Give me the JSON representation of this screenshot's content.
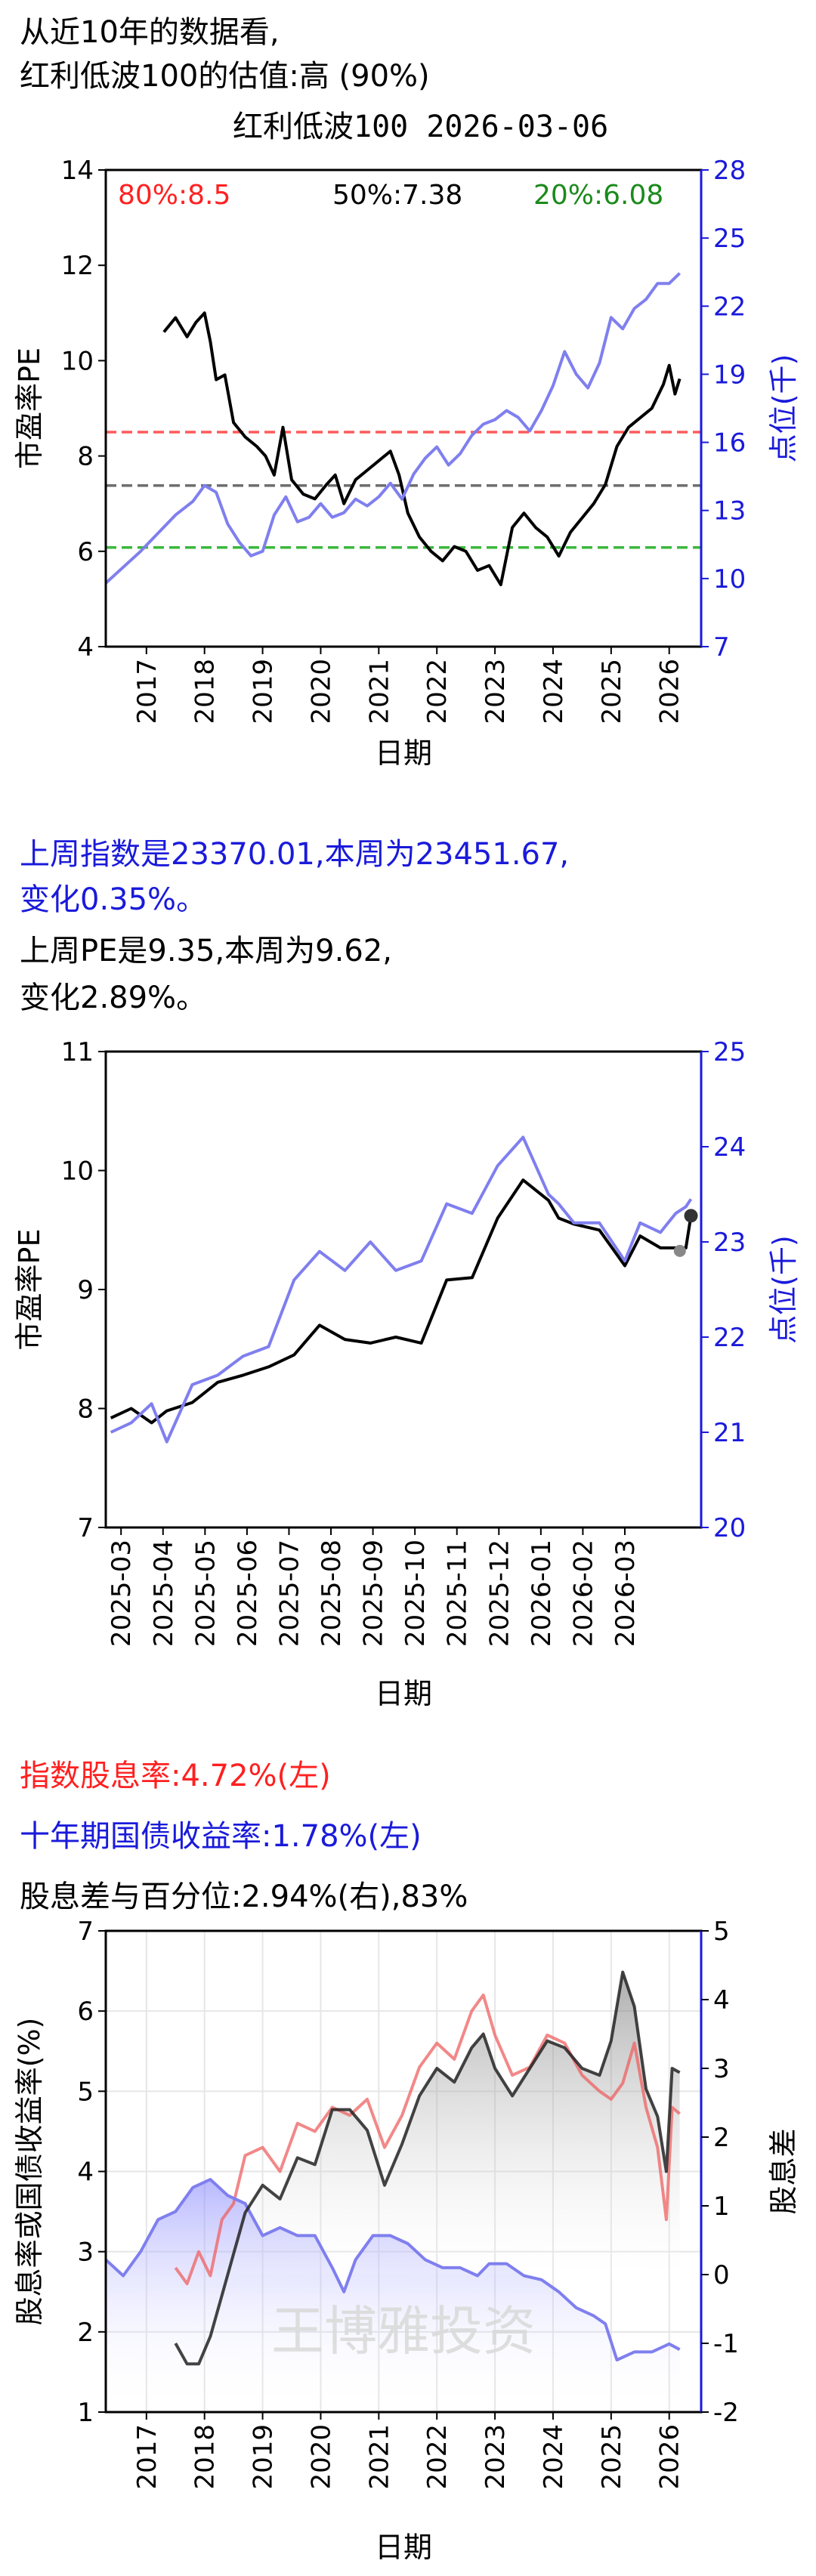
{
  "header": {
    "line1": "从近10年的数据看,",
    "line2": "红利低波100的估值:高 (90%)",
    "chart_title": "红利低波100 2026-03-06"
  },
  "middle": {
    "line1": "上周指数是23370.01,本周为23451.67,",
    "line2": "变化0.35%。",
    "line3": "上周PE是9.35,本周为9.62,",
    "line4": "变化2.89%。"
  },
  "lower": {
    "line1": "指数股息率:4.72%(左)",
    "line2": "十年期国债收益率:1.78%(左)",
    "line3": "股息差与百分位:2.94%(右),83%",
    "watermark": "王博雅投资"
  },
  "colors": {
    "pe": "#000000",
    "index": "#7f7fef",
    "blue_text": "#1a1adb",
    "red": "#ff2020",
    "green": "#1b8a1b",
    "gray": "#7f7f7f"
  },
  "chart_data": [
    {
      "type": "line",
      "title": "红利低波100 2026-03-06",
      "xlabel": "日期",
      "ylabel": "市盈率PE",
      "y2label": "点位(千)",
      "ylim": [
        4,
        14
      ],
      "y2lim": [
        7,
        28
      ],
      "yticks": [
        "4",
        "6",
        "8",
        "10",
        "12",
        "14"
      ],
      "y2ticks": [
        "7",
        "10",
        "13",
        "16",
        "19",
        "22",
        "25",
        "28"
      ],
      "xticks": [
        "2017",
        "2018",
        "2019",
        "2020",
        "2021",
        "2022",
        "2023",
        "2024",
        "2025",
        "2026"
      ],
      "xlim": [
        2016.3,
        2026.55
      ],
      "hlines": [
        {
          "label": "80%:8.5",
          "value": 8.5,
          "color": "#ff5a5a"
        },
        {
          "label": "50%:7.38",
          "value": 7.38,
          "color": "#6e6e6e"
        },
        {
          "label": "20%:6.08",
          "value": 6.08,
          "color": "#3cb83c"
        }
      ],
      "series": [
        {
          "role": "pe",
          "axis": "left",
          "x": [
            2017.3,
            2017.5,
            2017.7,
            2017.85,
            2018.0,
            2018.1,
            2018.2,
            2018.35,
            2018.5,
            2018.7,
            2018.9,
            2019.05,
            2019.2,
            2019.35,
            2019.5,
            2019.7,
            2019.9,
            2020.1,
            2020.25,
            2020.4,
            2020.6,
            2020.8,
            2021.0,
            2021.2,
            2021.35,
            2021.5,
            2021.7,
            2021.9,
            2022.1,
            2022.3,
            2022.5,
            2022.7,
            2022.9,
            2023.1,
            2023.3,
            2023.5,
            2023.7,
            2023.9,
            2024.1,
            2024.3,
            2024.5,
            2024.7,
            2024.9,
            2025.1,
            2025.3,
            2025.5,
            2025.7,
            2025.9,
            2026.0,
            2026.1,
            2026.18
          ],
          "values": [
            10.6,
            10.9,
            10.5,
            10.8,
            11.0,
            10.4,
            9.6,
            9.7,
            8.7,
            8.4,
            8.2,
            8.0,
            7.6,
            8.6,
            7.5,
            7.2,
            7.1,
            7.4,
            7.6,
            7.0,
            7.5,
            7.7,
            7.9,
            8.1,
            7.6,
            6.8,
            6.3,
            6.0,
            5.8,
            6.1,
            6.0,
            5.6,
            5.7,
            5.3,
            6.5,
            6.8,
            6.5,
            6.3,
            5.9,
            6.4,
            6.7,
            7.0,
            7.4,
            8.2,
            8.6,
            8.8,
            9.0,
            9.5,
            9.9,
            9.3,
            9.62
          ]
        },
        {
          "role": "index",
          "axis": "right",
          "x": [
            2016.3,
            2016.6,
            2016.9,
            2017.2,
            2017.5,
            2017.8,
            2018.0,
            2018.2,
            2018.4,
            2018.6,
            2018.8,
            2019.0,
            2019.2,
            2019.4,
            2019.6,
            2019.8,
            2020.0,
            2020.2,
            2020.4,
            2020.6,
            2020.8,
            2021.0,
            2021.2,
            2021.4,
            2021.6,
            2021.8,
            2022.0,
            2022.2,
            2022.4,
            2022.6,
            2022.8,
            2023.0,
            2023.2,
            2023.4,
            2023.6,
            2023.8,
            2024.0,
            2024.2,
            2024.4,
            2024.6,
            2024.8,
            2025.0,
            2025.2,
            2025.4,
            2025.6,
            2025.8,
            2026.0,
            2026.18
          ],
          "values": [
            9.8,
            10.5,
            11.2,
            12.0,
            12.8,
            13.4,
            14.1,
            13.8,
            12.4,
            11.6,
            11.0,
            11.2,
            12.8,
            13.6,
            12.5,
            12.7,
            13.3,
            12.7,
            12.9,
            13.5,
            13.2,
            13.6,
            14.2,
            13.5,
            14.6,
            15.3,
            15.8,
            15.0,
            15.5,
            16.3,
            16.8,
            17.0,
            17.4,
            17.1,
            16.5,
            17.4,
            18.5,
            20.0,
            19.0,
            18.4,
            19.5,
            21.5,
            21.0,
            21.9,
            22.3,
            23.0,
            23.0,
            23.45
          ]
        }
      ]
    },
    {
      "type": "line",
      "xlabel": "日期",
      "ylabel": "市盈率PE",
      "y2label": "点位(千)",
      "ylim": [
        7,
        11
      ],
      "y2lim": [
        20,
        25
      ],
      "yticks": [
        "7",
        "8",
        "9",
        "10",
        "11"
      ],
      "y2ticks": [
        "20",
        "21",
        "22",
        "23",
        "24",
        "25"
      ],
      "xticks": [
        "2025-03",
        "2025-04",
        "2025-05",
        "2025-06",
        "2025-07",
        "2025-08",
        "2025-09",
        "2025-10",
        "2025-11",
        "2025-12",
        "2026-01",
        "2026-02",
        "2026-03"
      ],
      "xlim": [
        2025.03,
        2026.2
      ],
      "series": [
        {
          "role": "pe",
          "axis": "left",
          "x": [
            2025.04,
            2025.08,
            2025.12,
            2025.15,
            2025.2,
            2025.25,
            2025.3,
            2025.35,
            2025.4,
            2025.45,
            2025.5,
            2025.55,
            2025.6,
            2025.65,
            2025.7,
            2025.75,
            2025.8,
            2025.85,
            2025.9,
            2025.92,
            2025.95,
            2026.0,
            2026.05,
            2026.08,
            2026.12,
            2026.15,
            2026.17,
            2026.18
          ],
          "values": [
            7.92,
            8.0,
            7.88,
            7.98,
            8.05,
            8.22,
            8.28,
            8.35,
            8.45,
            8.7,
            8.58,
            8.55,
            8.6,
            8.55,
            9.08,
            9.1,
            9.6,
            9.92,
            9.75,
            9.6,
            9.55,
            9.5,
            9.2,
            9.45,
            9.35,
            9.35,
            9.35,
            9.62
          ]
        },
        {
          "role": "index",
          "axis": "right",
          "x": [
            2025.04,
            2025.08,
            2025.12,
            2025.15,
            2025.2,
            2025.25,
            2025.3,
            2025.35,
            2025.4,
            2025.45,
            2025.5,
            2025.55,
            2025.6,
            2025.65,
            2025.7,
            2025.75,
            2025.8,
            2025.85,
            2025.9,
            2025.92,
            2025.95,
            2026.0,
            2026.05,
            2026.08,
            2026.12,
            2026.15,
            2026.17,
            2026.18
          ],
          "values": [
            21.0,
            21.1,
            21.3,
            20.9,
            21.5,
            21.6,
            21.8,
            21.9,
            22.6,
            22.9,
            22.7,
            23.0,
            22.7,
            22.8,
            23.4,
            23.3,
            23.8,
            24.1,
            23.5,
            23.4,
            23.2,
            23.2,
            22.8,
            23.2,
            23.1,
            23.3,
            23.37,
            23.45
          ]
        }
      ]
    },
    {
      "type": "line",
      "xlabel": "日期",
      "ylabel": "股息率或国债收益率(%)",
      "y2label": "股息差",
      "ylim": [
        1,
        7
      ],
      "y2lim": [
        -2,
        5
      ],
      "yticks": [
        "1",
        "2",
        "3",
        "4",
        "5",
        "6",
        "7"
      ],
      "y2ticks": [
        "-2",
        "-1",
        "0",
        "1",
        "2",
        "3",
        "4",
        "5"
      ],
      "xticks": [
        "2017",
        "2018",
        "2019",
        "2020",
        "2021",
        "2022",
        "2023",
        "2024",
        "2025",
        "2026"
      ],
      "xlim": [
        2016.3,
        2026.55
      ],
      "series": [
        {
          "role": "dividend_yield",
          "axis": "left",
          "x": [
            2017.5,
            2017.7,
            2017.9,
            2018.1,
            2018.3,
            2018.5,
            2018.7,
            2019.0,
            2019.3,
            2019.6,
            2019.9,
            2020.2,
            2020.5,
            2020.8,
            2021.1,
            2021.4,
            2021.7,
            2022.0,
            2022.3,
            2022.6,
            2022.8,
            2023.0,
            2023.3,
            2023.6,
            2023.9,
            2024.2,
            2024.5,
            2024.8,
            2025.0,
            2025.2,
            2025.4,
            2025.6,
            2025.8,
            2025.95,
            2026.05,
            2026.18
          ],
          "values": [
            2.8,
            2.6,
            3.0,
            2.7,
            3.4,
            3.6,
            4.2,
            4.3,
            4.0,
            4.6,
            4.5,
            4.8,
            4.7,
            4.9,
            4.3,
            4.7,
            5.3,
            5.6,
            5.4,
            6.0,
            6.2,
            5.7,
            5.2,
            5.3,
            5.7,
            5.6,
            5.2,
            5.0,
            4.9,
            5.1,
            5.6,
            4.8,
            4.3,
            3.4,
            4.8,
            4.72
          ]
        },
        {
          "role": "bond_yield",
          "axis": "left",
          "x": [
            2016.3,
            2016.6,
            2016.9,
            2017.2,
            2017.5,
            2017.8,
            2018.1,
            2018.4,
            2018.7,
            2019.0,
            2019.3,
            2019.6,
            2019.9,
            2020.2,
            2020.4,
            2020.6,
            2020.9,
            2021.2,
            2021.5,
            2021.8,
            2022.1,
            2022.4,
            2022.7,
            2022.9,
            2023.2,
            2023.5,
            2023.8,
            2024.1,
            2024.4,
            2024.7,
            2024.9,
            2025.1,
            2025.4,
            2025.7,
            2026.0,
            2026.18
          ],
          "values": [
            2.9,
            2.7,
            3.0,
            3.4,
            3.5,
            3.8,
            3.9,
            3.7,
            3.6,
            3.2,
            3.3,
            3.2,
            3.2,
            2.8,
            2.5,
            2.9,
            3.2,
            3.2,
            3.1,
            2.9,
            2.8,
            2.8,
            2.7,
            2.85,
            2.85,
            2.7,
            2.65,
            2.5,
            2.3,
            2.2,
            2.1,
            1.65,
            1.75,
            1.75,
            1.85,
            1.78
          ]
        },
        {
          "role": "spread",
          "axis": "right",
          "x": [
            2017.5,
            2017.7,
            2017.9,
            2018.1,
            2018.3,
            2018.5,
            2018.7,
            2019.0,
            2019.3,
            2019.6,
            2019.9,
            2020.2,
            2020.5,
            2020.8,
            2021.1,
            2021.4,
            2021.7,
            2022.0,
            2022.3,
            2022.6,
            2022.8,
            2023.0,
            2023.3,
            2023.6,
            2023.9,
            2024.2,
            2024.5,
            2024.8,
            2025.0,
            2025.2,
            2025.4,
            2025.6,
            2025.8,
            2025.95,
            2026.05,
            2026.18
          ],
          "values": [
            -1.0,
            -1.3,
            -1.3,
            -0.9,
            -0.3,
            0.3,
            0.9,
            1.3,
            1.1,
            1.7,
            1.6,
            2.4,
            2.4,
            2.1,
            1.3,
            1.9,
            2.6,
            3.0,
            2.8,
            3.3,
            3.5,
            3.0,
            2.6,
            3.0,
            3.4,
            3.3,
            3.0,
            2.9,
            3.4,
            4.4,
            3.9,
            2.7,
            2.3,
            1.5,
            3.0,
            2.94
          ]
        }
      ]
    }
  ]
}
